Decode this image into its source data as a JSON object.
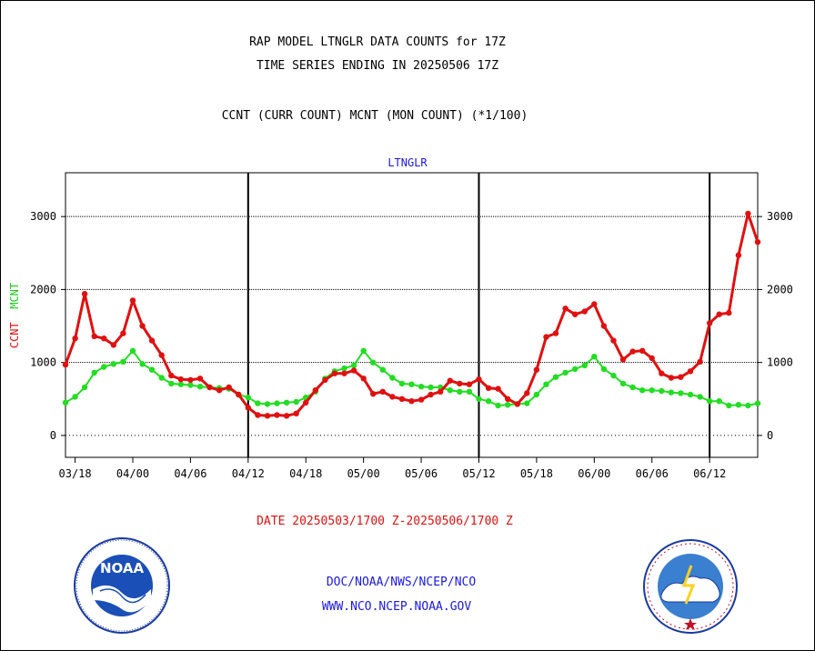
{
  "header": {
    "title_line1": "RAP MODEL LTNGLR DATA COUNTS for 17Z",
    "title_line2": "TIME SERIES ENDING IN 20250506 17Z",
    "subtitle": "CCNT (CURR COUNT) MCNT (MON COUNT) (*1/100)"
  },
  "footer": {
    "date_range": "DATE 20250503/1700 Z-20250506/1700 Z",
    "link_1": "DOC/NOAA/NWS/NCEP/NCO",
    "link_2": "WWW.NCO.NCEP.NOAA.GOV"
  },
  "logos": {
    "left_text": "NOAA",
    "left_icon": "noaa-logo-icon",
    "right_icon": "nws-logo-icon"
  },
  "chart_data": {
    "type": "line",
    "title": "LTNGLR",
    "ylabel_parts": [
      "CCNT",
      "MCNT"
    ],
    "ylim": [
      -300,
      3600
    ],
    "y_ticks": [
      0,
      1000,
      2000,
      3000
    ],
    "grid": true,
    "x_tick_labels": [
      "03/18",
      "04/00",
      "04/06",
      "04/12",
      "04/18",
      "05/00",
      "05/06",
      "05/12",
      "05/18",
      "06/00",
      "06/06",
      "06/12"
    ],
    "x_tick_index": [
      1,
      7,
      13,
      19,
      25,
      31,
      37,
      43,
      49,
      55,
      61,
      67
    ],
    "day_boundaries_index": [
      19,
      43,
      67
    ],
    "x_range_index": [
      0,
      72
    ],
    "colors": {
      "ccnt": "#e01010",
      "mcnt": "#22dd22"
    },
    "series": [
      {
        "name": "CCNT",
        "values": [
          970,
          1330,
          1940,
          1360,
          1330,
          1240,
          1400,
          1850,
          1500,
          1300,
          1100,
          820,
          770,
          760,
          780,
          660,
          620,
          660,
          560,
          380,
          280,
          270,
          280,
          270,
          300,
          450,
          620,
          760,
          850,
          850,
          890,
          780,
          570,
          600,
          530,
          500,
          470,
          490,
          560,
          600,
          750,
          710,
          700,
          770,
          650,
          640,
          500,
          430,
          580,
          900,
          1350,
          1400,
          1740,
          1660,
          1700,
          1800,
          1500,
          1300,
          1040,
          1150,
          1160,
          1060,
          850,
          790,
          800,
          880,
          1010,
          1540,
          1660,
          1680,
          2470,
          3040,
          2650
        ]
      },
      {
        "name": "MCNT",
        "values": [
          450,
          530,
          660,
          860,
          940,
          980,
          1010,
          1160,
          980,
          900,
          790,
          710,
          700,
          690,
          670,
          660,
          650,
          640,
          560,
          520,
          440,
          430,
          440,
          450,
          460,
          520,
          600,
          780,
          880,
          920,
          960,
          1160,
          1000,
          900,
          790,
          710,
          700,
          670,
          660,
          660,
          620,
          600,
          600,
          500,
          470,
          410,
          420,
          430,
          440,
          560,
          700,
          800,
          860,
          910,
          960,
          1080,
          910,
          820,
          710,
          660,
          620,
          620,
          610,
          590,
          580,
          560,
          530,
          470,
          470,
          410,
          420,
          410,
          440
        ]
      }
    ]
  }
}
